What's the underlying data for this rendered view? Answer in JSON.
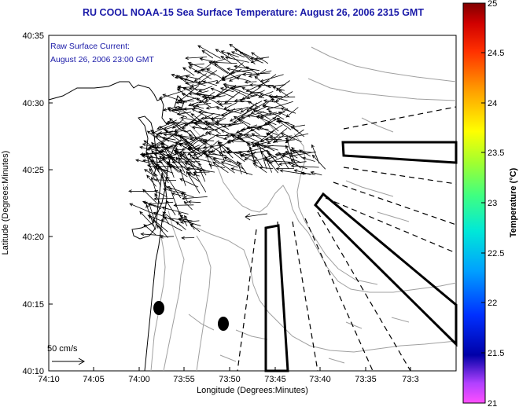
{
  "title": "RU COOL  NOAA-15  Sea Surface Temperature:  August 26, 2006 2315 GMT",
  "inset": {
    "line1": "Raw Surface Current:",
    "line2": "August 26, 2006 23:00 GMT"
  },
  "scale": {
    "label": "50 cm/s"
  },
  "axes": {
    "xlabel": "Longitude (Degrees:Minutes)",
    "ylabel": "Latitude (Degrees:Minutes)",
    "xticks": [
      "74:10",
      "74:05",
      "74:00",
      "73:55",
      "73:50",
      "73:45",
      "73:40",
      "73:35",
      "73:3"
    ],
    "yticks": [
      "40:35",
      "40:30",
      "40:25",
      "40:20",
      "40:15",
      "40:10"
    ]
  },
  "colorbar": {
    "title": "Temperature (°C)",
    "ticks": [
      "25",
      "24.5",
      "24",
      "23.5",
      "23",
      "22.5",
      "22",
      "21.5",
      "21"
    ]
  }
}
